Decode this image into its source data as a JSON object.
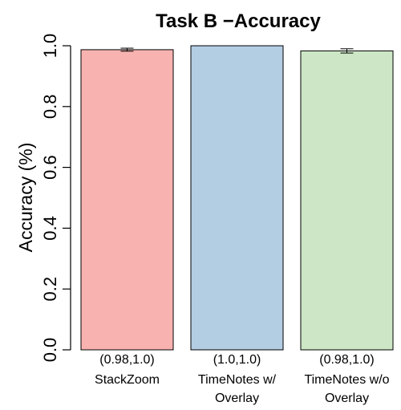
{
  "chart_data": {
    "type": "bar",
    "title": "Task B −Accuracy",
    "ylabel": "Accuracy (%)",
    "xlabel": "",
    "ylim": [
      0,
      1
    ],
    "yticks": [
      "0.0",
      "0.2",
      "0.4",
      "0.6",
      "0.8",
      "1.0"
    ],
    "grid": false,
    "legend": "none",
    "categories": [
      {
        "interval": "(0.98,1.0)",
        "name_line1": "StackZoom",
        "name_line2": ""
      },
      {
        "interval": "(1.0,1.0)",
        "name_line1": "TimeNotes w/",
        "name_line2": "Overlay"
      },
      {
        "interval": "(0.98,1.0)",
        "name_line1": "TimeNotes w/o",
        "name_line2": "Overlay"
      }
    ],
    "values": [
      0.987,
      1.0,
      0.983
    ],
    "error_low": [
      0.982,
      1.0,
      0.976
    ],
    "error_high": [
      0.992,
      1.0,
      0.99
    ],
    "colors": [
      "#f8b3b1",
      "#b3cde3",
      "#cde7c6"
    ]
  }
}
